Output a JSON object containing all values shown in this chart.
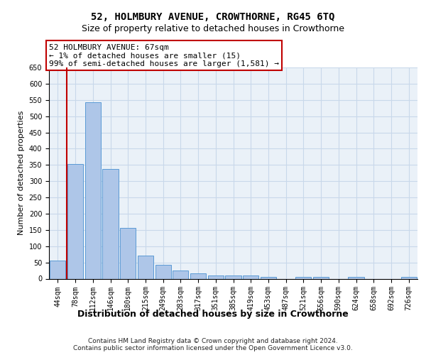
{
  "title": "52, HOLMBURY AVENUE, CROWTHORNE, RG45 6TQ",
  "subtitle": "Size of property relative to detached houses in Crowthorne",
  "xlabel": "Distribution of detached houses by size in Crowthorne",
  "ylabel": "Number of detached properties",
  "categories": [
    "44sqm",
    "78sqm",
    "112sqm",
    "146sqm",
    "180sqm",
    "215sqm",
    "249sqm",
    "283sqm",
    "317sqm",
    "351sqm",
    "385sqm",
    "419sqm",
    "453sqm",
    "487sqm",
    "521sqm",
    "556sqm",
    "590sqm",
    "624sqm",
    "658sqm",
    "692sqm",
    "726sqm"
  ],
  "values": [
    55,
    353,
    542,
    338,
    157,
    70,
    42,
    25,
    17,
    10,
    9,
    10,
    5,
    0,
    5,
    5,
    0,
    5,
    0,
    0,
    5
  ],
  "bar_color": "#aec6e8",
  "bar_edge_color": "#5b9bd5",
  "highlight_edge_color": "#c00000",
  "annotation_line1": "52 HOLMBURY AVENUE: 67sqm",
  "annotation_line2": "← 1% of detached houses are smaller (15)",
  "annotation_line3": "99% of semi-detached houses are larger (1,581) →",
  "annotation_box_edge_color": "#c00000",
  "ylim": [
    0,
    650
  ],
  "yticks": [
    0,
    50,
    100,
    150,
    200,
    250,
    300,
    350,
    400,
    450,
    500,
    550,
    600,
    650
  ],
  "grid_color": "#c8d8ea",
  "background_color": "#eaf1f8",
  "footer_line1": "Contains HM Land Registry data © Crown copyright and database right 2024.",
  "footer_line2": "Contains public sector information licensed under the Open Government Licence v3.0.",
  "title_fontsize": 10,
  "subtitle_fontsize": 9,
  "xlabel_fontsize": 9,
  "ylabel_fontsize": 8,
  "tick_fontsize": 7,
  "annotation_fontsize": 8,
  "footer_fontsize": 6.5
}
